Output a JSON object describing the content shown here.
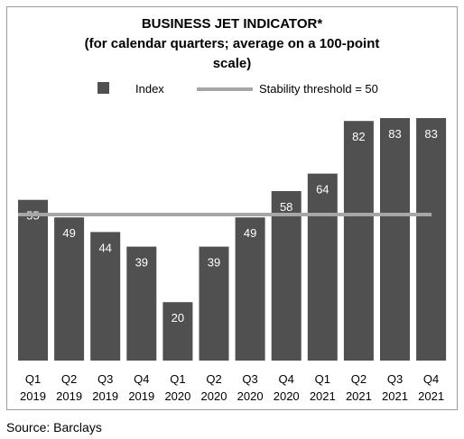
{
  "title_lines": [
    "BUSINESS JET INDICATOR*",
    "(for calendar quarters; average on a 100-point",
    "scale)"
  ],
  "source": "Source: Barclays",
  "colors": {
    "bar": "#505050",
    "threshold": "#a6a6a6",
    "bar_label": "#ffffff",
    "frame": "#9a9a9a"
  },
  "chart_data": {
    "type": "bar",
    "title": "BUSINESS JET INDICATOR* (for calendar quarters; average on a 100-point scale)",
    "categories": [
      [
        "Q1",
        "2019"
      ],
      [
        "Q2",
        "2019"
      ],
      [
        "Q3",
        "2019"
      ],
      [
        "Q4",
        "2019"
      ],
      [
        "Q1",
        "2020"
      ],
      [
        "Q2",
        "2020"
      ],
      [
        "Q3",
        "2020"
      ],
      [
        "Q4",
        "2020"
      ],
      [
        "Q1",
        "2021"
      ],
      [
        "Q2",
        "2021"
      ],
      [
        "Q3",
        "2021"
      ],
      [
        "Q4",
        "2021"
      ]
    ],
    "series": [
      {
        "name": "Index",
        "type": "bar",
        "values": [
          55,
          49,
          44,
          39,
          20,
          39,
          49,
          58,
          64,
          82,
          83,
          83
        ]
      },
      {
        "name": "Stability threshold = 50",
        "type": "line",
        "values": [
          50,
          50,
          50,
          50,
          50,
          50,
          50,
          50,
          50,
          50,
          50,
          50
        ]
      }
    ],
    "data_labels": [
      "55",
      "49",
      "44",
      "39",
      "20",
      "39",
      "49",
      "58",
      "64",
      "82",
      "83",
      "83"
    ],
    "xlabel": "",
    "ylabel": "",
    "ylim": [
      0,
      83
    ],
    "grid": false,
    "y_axis_visible": false,
    "legend_position": "top",
    "legend": [
      {
        "label": "Index",
        "marker": "square"
      },
      {
        "label": "Stability threshold = 50",
        "marker": "line"
      }
    ]
  }
}
